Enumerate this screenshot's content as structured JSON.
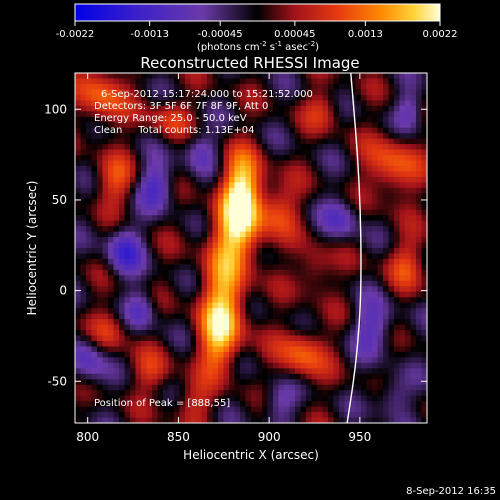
{
  "chart_data": {
    "type": "heatmap",
    "title": "Reconstructed RHESSI Image",
    "xlabel": "Heliocentric X (arcsec)",
    "ylabel": "Heliocentric Y (arcsec)",
    "xlim": [
      793,
      987
    ],
    "ylim": [
      -73,
      120
    ],
    "x_ticks": [
      800,
      850,
      900,
      950
    ],
    "y_ticks": [
      -50,
      0,
      50,
      100
    ],
    "colorbar": {
      "min": -0.0022,
      "max": 0.0022,
      "tick_values": [
        -0.0022,
        -0.0013,
        -0.00045,
        0.00045,
        0.0013,
        0.0022
      ],
      "tick_labels": [
        "-0.0022",
        "-0.0013",
        "-0.00045",
        "0.00045",
        "0.0013",
        "0.0022"
      ],
      "unit_parts": [
        "(photons cm",
        "-2",
        " s",
        "-1",
        " asec",
        "-2",
        ")"
      ]
    },
    "annotations": [
      "6-Sep-2012 15:17:24.000 to 15:21:52.000",
      "Detectors: 3F 5F 6F 7F 8F 9F, Att 0",
      "Energy Range: 25.0 - 50.0 keV",
      "Clean     Total counts: 1.13E+04"
    ],
    "peak_label": "Position of Peak = [888,55]",
    "peak": [
      888,
      55
    ],
    "limb_points": [
      [
        945,
        120
      ],
      [
        950,
        60
      ],
      [
        951,
        0
      ],
      [
        948,
        -40
      ],
      [
        943,
        -73
      ]
    ],
    "source_blobs": [
      {
        "x": 885,
        "y": 55,
        "sx": 8,
        "sy": 14,
        "amp": 0.0022
      },
      {
        "x": 882,
        "y": 30,
        "sx": 10,
        "sy": 12,
        "amp": 0.0016
      },
      {
        "x": 875,
        "y": -5,
        "sx": 9,
        "sy": 16,
        "amp": 0.0017
      },
      {
        "x": 872,
        "y": -30,
        "sx": 8,
        "sy": 12,
        "amp": 0.0013
      },
      {
        "x": 905,
        "y": 45,
        "sx": 8,
        "sy": 10,
        "amp": 0.0009
      },
      {
        "x": 808,
        "y": 108,
        "sx": 9,
        "sy": 12,
        "amp": 0.0012
      },
      {
        "x": 815,
        "y": 60,
        "sx": 8,
        "sy": 10,
        "amp": 0.0009
      },
      {
        "x": 845,
        "y": 95,
        "sx": 8,
        "sy": 8,
        "amp": 0.0008
      },
      {
        "x": 812,
        "y": -22,
        "sx": 7,
        "sy": 9,
        "amp": 0.0008
      },
      {
        "x": 835,
        "y": -45,
        "sx": 8,
        "sy": 8,
        "amp": 0.0007
      },
      {
        "x": 858,
        "y": -62,
        "sx": 8,
        "sy": 8,
        "amp": 0.0007
      },
      {
        "x": 918,
        "y": -35,
        "sx": 9,
        "sy": 10,
        "amp": 0.0012
      },
      {
        "x": 925,
        "y": 12,
        "sx": 7,
        "sy": 9,
        "amp": 0.0008
      },
      {
        "x": 968,
        "y": 68,
        "sx": 10,
        "sy": 12,
        "amp": 0.0012
      },
      {
        "x": 975,
        "y": 15,
        "sx": 8,
        "sy": 10,
        "amp": 0.0008
      },
      {
        "x": 930,
        "y": 100,
        "sx": 7,
        "sy": 8,
        "amp": 0.0007
      },
      {
        "x": 820,
        "y": 22,
        "sx": 7,
        "sy": 10,
        "amp": -0.0012
      },
      {
        "x": 838,
        "y": 58,
        "sx": 7,
        "sy": 9,
        "amp": -0.0012
      },
      {
        "x": 800,
        "y": -38,
        "sx": 7,
        "sy": 10,
        "amp": -0.001
      },
      {
        "x": 830,
        "y": -10,
        "sx": 6,
        "sy": 8,
        "amp": -0.0009
      },
      {
        "x": 862,
        "y": 78,
        "sx": 7,
        "sy": 8,
        "amp": -0.0008
      },
      {
        "x": 905,
        "y": -62,
        "sx": 7,
        "sy": 8,
        "amp": -0.0008
      },
      {
        "x": 958,
        "y": -20,
        "sx": 8,
        "sy": 10,
        "amp": -0.001
      },
      {
        "x": 940,
        "y": 40,
        "sx": 7,
        "sy": 9,
        "amp": -0.0009
      },
      {
        "x": 978,
        "y": 100,
        "sx": 6,
        "sy": 8,
        "amp": -0.0008
      },
      {
        "x": 968,
        "y": -58,
        "sx": 7,
        "sy": 8,
        "amp": -0.0008
      }
    ]
  },
  "footer": {
    "timestamp": "8-Sep-2012 16:35"
  }
}
